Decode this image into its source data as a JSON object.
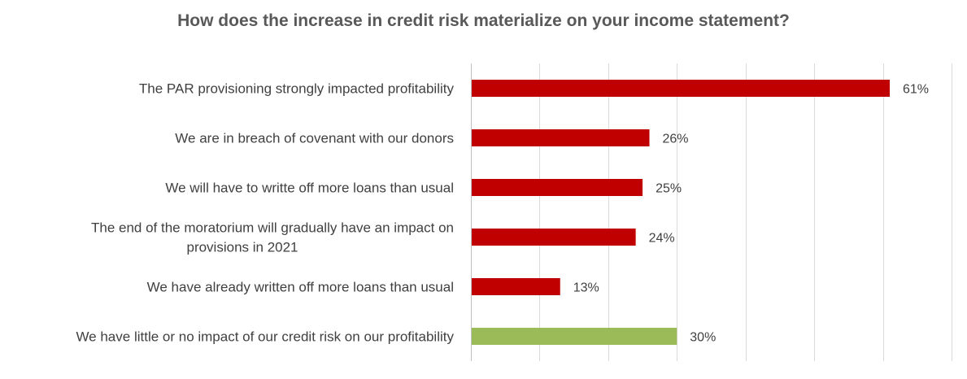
{
  "chart_data": {
    "type": "bar",
    "orientation": "horizontal",
    "title": "How does the increase in credit risk materialize on your income statement?",
    "categories": [
      [
        "The PAR provisioning strongly impacted profitability"
      ],
      [
        "We are in breach of covenant with our donors"
      ],
      [
        "We will have to writte off more loans than usual"
      ],
      [
        "The end of the moratorium will gradually have an impact on",
        "provisions in 2021"
      ],
      [
        "We have already written off more loans than usual"
      ],
      [
        "We have little or no impact of our credit risk on our profitability"
      ]
    ],
    "values": [
      61,
      26,
      25,
      24,
      13,
      30
    ],
    "value_labels": [
      "61%",
      "26%",
      "25%",
      "24%",
      "13%",
      "30%"
    ],
    "bar_colors": [
      "#c00000",
      "#c00000",
      "#c00000",
      "#c00000",
      "#c00000",
      "#9bbb59"
    ],
    "xlim": [
      0,
      70
    ],
    "grid": true,
    "xlabel": "",
    "ylabel": ""
  }
}
